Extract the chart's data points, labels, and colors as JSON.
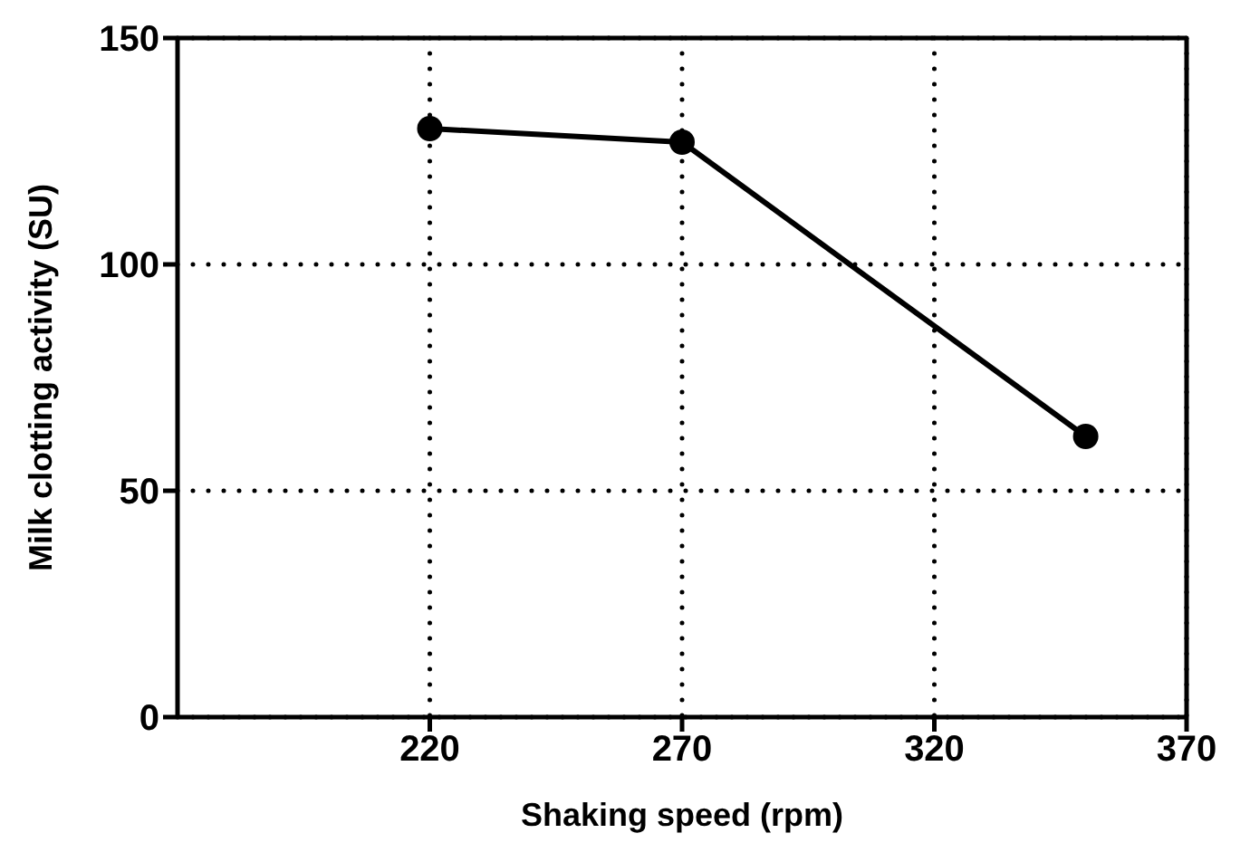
{
  "chart_data": {
    "type": "line",
    "xlabel": "Shaking speed (rpm)",
    "ylabel": "Milk clotting activity (SU)",
    "x": [
      220,
      270,
      350
    ],
    "series": [
      {
        "color": "#000000",
        "values": [
          130,
          127,
          62
        ]
      }
    ],
    "xlim": [
      170,
      370
    ],
    "xticks": [
      220,
      270,
      320,
      370
    ],
    "ylim": [
      0,
      150
    ],
    "yticks": [
      0,
      50,
      100,
      150
    ],
    "grid": true,
    "marker": "circle",
    "line_style": "solid"
  }
}
